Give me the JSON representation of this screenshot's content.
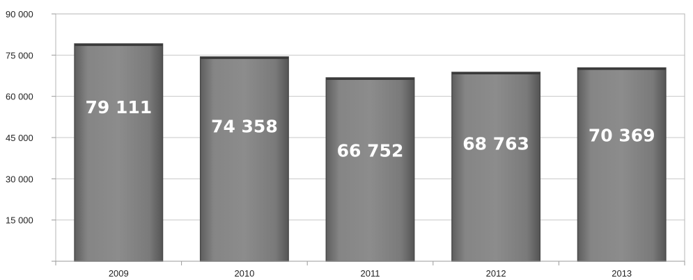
{
  "chart_data": {
    "type": "bar",
    "categories": [
      "2009",
      "2010",
      "2011",
      "2012",
      "2013"
    ],
    "values": [
      79111,
      74358,
      66752,
      68763,
      70369
    ],
    "data_labels": [
      "79 111",
      "74 358",
      "66 752",
      "68 763",
      "70 369"
    ],
    "y_tick_labels": [
      "",
      "15 000",
      "30 000",
      "45 000",
      "60 000",
      "75 000",
      "90 000"
    ],
    "ylim": [
      0,
      90000
    ],
    "grid": true,
    "bar_color": "#7d7d7d",
    "bar_edge_color": "#4a4a4a"
  }
}
